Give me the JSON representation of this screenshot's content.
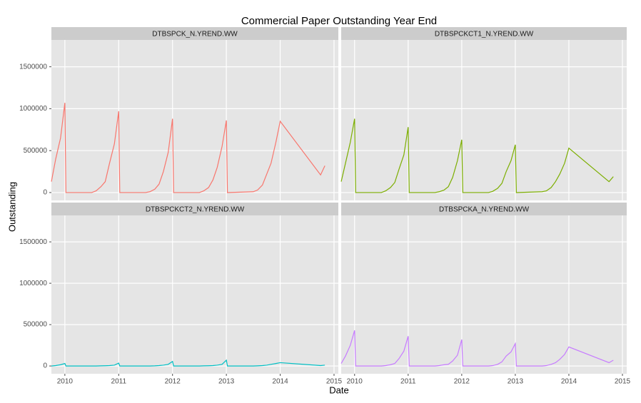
{
  "chart_data": {
    "type": "line",
    "facet": true,
    "title": "Commercial Paper Outstanding Year End",
    "xlabel": "Date",
    "ylabel": "Outstanding",
    "xlim": [
      2009.75,
      2015.08
    ],
    "xticks": [
      2010,
      2011,
      2012,
      2013,
      2014,
      2015
    ],
    "ylim": [
      -94000,
      1820000
    ],
    "yticks": [
      0,
      500000,
      1000000,
      1500000
    ],
    "grid": true,
    "x": [
      2009.75,
      2009.83,
      2009.92,
      2010.0,
      2010.02,
      2010.5,
      2010.58,
      2010.67,
      2010.75,
      2010.83,
      2010.92,
      2011.0,
      2011.02,
      2011.5,
      2011.58,
      2011.67,
      2011.75,
      2011.83,
      2011.92,
      2012.0,
      2012.02,
      2012.5,
      2012.58,
      2012.67,
      2012.75,
      2012.83,
      2012.92,
      2013.0,
      2013.02,
      2013.5,
      2013.58,
      2013.67,
      2013.75,
      2013.83,
      2013.92,
      2014.0,
      2014.75,
      2014.83
    ],
    "series": [
      {
        "name": "DTBSPCK_N.YREND.WW",
        "color": "#F8766D",
        "values": [
          130000,
          400000,
          650000,
          1070000,
          0,
          0,
          20000,
          70000,
          130000,
          350000,
          580000,
          970000,
          0,
          0,
          10000,
          40000,
          100000,
          250000,
          480000,
          880000,
          0,
          0,
          20000,
          60000,
          150000,
          300000,
          550000,
          860000,
          0,
          10000,
          30000,
          90000,
          220000,
          350000,
          600000,
          850000,
          210000,
          320000
        ]
      },
      {
        "name": "DTBSPCKCT1_N.YREND.WW",
        "color": "#7CAE00",
        "values": [
          130000,
          350000,
          600000,
          880000,
          0,
          0,
          20000,
          60000,
          120000,
          280000,
          450000,
          780000,
          0,
          0,
          10000,
          30000,
          70000,
          180000,
          380000,
          630000,
          0,
          0,
          15000,
          50000,
          110000,
          250000,
          380000,
          570000,
          0,
          10000,
          20000,
          60000,
          130000,
          220000,
          350000,
          530000,
          130000,
          190000
        ]
      },
      {
        "name": "DTBSPCKCT2_N.YREND.WW",
        "color": "#00BFC4",
        "values": [
          0,
          5000,
          15000,
          30000,
          0,
          0,
          0,
          2000,
          3000,
          5000,
          10000,
          35000,
          0,
          0,
          0,
          2000,
          5000,
          10000,
          20000,
          55000,
          0,
          0,
          2000,
          3000,
          5000,
          10000,
          20000,
          70000,
          0,
          0,
          2000,
          5000,
          10000,
          20000,
          30000,
          40000,
          5000,
          10000
        ]
      },
      {
        "name": "DTBSPCKA_N.YREND.WW",
        "color": "#C77CFF",
        "values": [
          30000,
          120000,
          250000,
          430000,
          0,
          0,
          5000,
          15000,
          30000,
          90000,
          180000,
          360000,
          0,
          0,
          5000,
          15000,
          20000,
          60000,
          130000,
          320000,
          0,
          0,
          5000,
          20000,
          50000,
          120000,
          170000,
          270000,
          0,
          0,
          5000,
          20000,
          40000,
          80000,
          140000,
          230000,
          40000,
          70000
        ]
      }
    ]
  }
}
